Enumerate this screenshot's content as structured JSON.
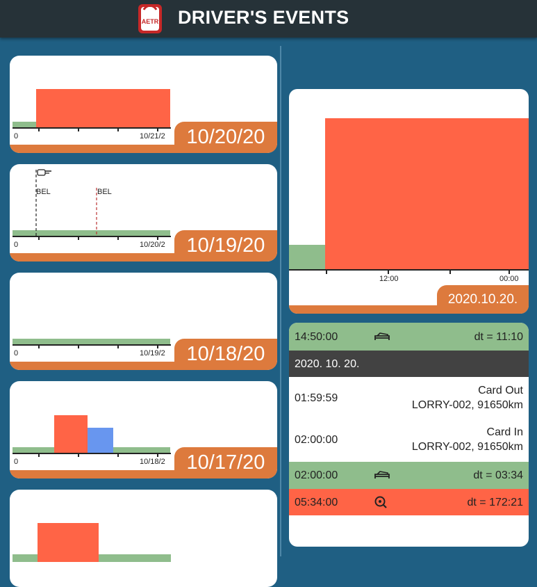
{
  "app": {
    "title": "DRIVER'S EVENTS",
    "logo_text": "AETR"
  },
  "colors": {
    "drive": "#ff6446",
    "rest": "#8fbd8c",
    "work": "#6896ef",
    "accent": "#dd7a3d",
    "background": "#1f5f83"
  },
  "day_cards": [
    {
      "date": "10/20/20",
      "axis_start": "0",
      "axis_end": "10/21/2",
      "markers": []
    },
    {
      "date": "10/19/20",
      "axis_start": "0",
      "axis_end": "10/20/2",
      "markers": [
        {
          "label": "BEL"
        },
        {
          "label": "BEL"
        }
      ],
      "marker_icon": "hand-pointer-icon"
    },
    {
      "date": "10/18/20",
      "axis_start": "0",
      "axis_end": "10/19/2",
      "markers": []
    },
    {
      "date": "10/17/20",
      "axis_start": "0",
      "axis_end": "10/18/2",
      "markers": []
    },
    {
      "date": "",
      "axis_start": "",
      "axis_end": "",
      "markers": []
    }
  ],
  "detail": {
    "date": "2020.10.20.",
    "ticks": [
      "12:00",
      "00:00"
    ]
  },
  "events": [
    {
      "type": "rest",
      "time": "14:50:00",
      "icon": "bed-icon",
      "dt": "dt = 11:10"
    },
    {
      "type": "date",
      "text": "2020. 10. 20."
    },
    {
      "type": "card",
      "time": "01:59:59",
      "event": "Card Out",
      "detail": "LORRY-002, 91650km"
    },
    {
      "type": "card",
      "time": "02:00:00",
      "event": "Card In",
      "detail": "LORRY-002, 91650km"
    },
    {
      "type": "rest",
      "time": "02:00:00",
      "icon": "bed-icon",
      "dt": "dt = 03:34"
    },
    {
      "type": "drive",
      "time": "05:34:00",
      "icon": "steering-wheel-icon",
      "dt": "dt = 172:21"
    }
  ]
}
